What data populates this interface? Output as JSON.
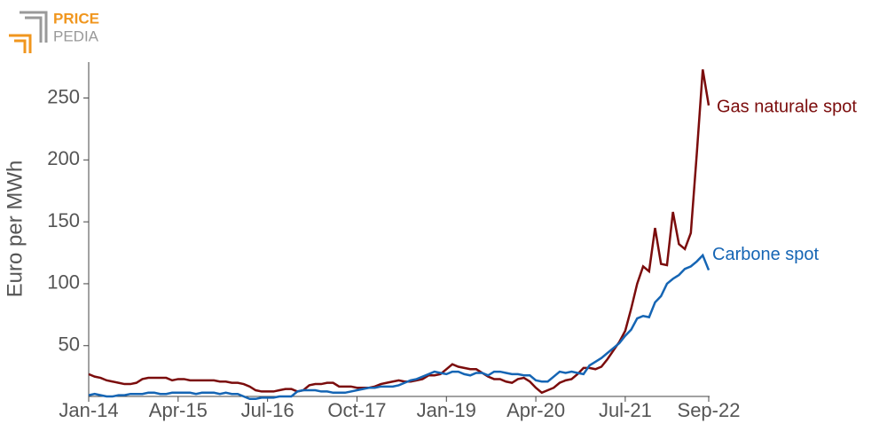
{
  "logo": {
    "top": "PRICE",
    "bottom": "PEDIA"
  },
  "chart_data": {
    "type": "line",
    "y_label": "Euro per MWh",
    "categories": [
      "Jan-14",
      null,
      null,
      null,
      null,
      null,
      null,
      null,
      null,
      null,
      null,
      null,
      null,
      null,
      null,
      "Apr-15",
      null,
      null,
      null,
      null,
      null,
      null,
      null,
      null,
      null,
      null,
      null,
      null,
      null,
      null,
      "Jul-16",
      null,
      null,
      null,
      null,
      null,
      null,
      null,
      null,
      null,
      null,
      null,
      null,
      null,
      null,
      "Oct-17",
      null,
      null,
      null,
      null,
      null,
      null,
      null,
      null,
      null,
      null,
      null,
      null,
      null,
      null,
      "Jan-19",
      null,
      null,
      null,
      null,
      null,
      null,
      null,
      null,
      null,
      null,
      null,
      null,
      null,
      null,
      "Apr-20",
      null,
      null,
      null,
      null,
      null,
      null,
      null,
      null,
      null,
      null,
      null,
      null,
      null,
      null,
      "Jul-21",
      null,
      null,
      null,
      null,
      null,
      null,
      null,
      null,
      null,
      null,
      null,
      null,
      null,
      "Sep-22"
    ],
    "series": [
      {
        "name": "Gas naturale spot",
        "color": "#7b0c0c",
        "values": [
          27,
          25,
          24,
          22,
          21,
          20,
          19,
          19,
          20,
          23,
          24,
          24,
          24,
          24,
          22,
          23,
          23,
          22,
          22,
          22,
          22,
          22,
          21,
          21,
          20,
          20,
          19,
          17,
          14,
          13,
          13,
          13,
          14,
          15,
          15,
          13,
          14,
          18,
          19,
          19,
          20,
          20,
          17,
          17,
          17,
          16,
          16,
          16,
          17,
          19,
          20,
          21,
          22,
          21,
          21,
          22,
          23,
          26,
          26,
          27,
          31,
          35,
          33,
          32,
          31,
          31,
          28,
          25,
          23,
          23,
          21,
          20,
          23,
          24,
          21,
          16,
          12,
          14,
          16,
          20,
          22,
          23,
          27,
          32,
          32,
          31,
          33,
          39,
          46,
          53,
          62,
          80,
          100,
          114,
          110,
          145,
          116,
          115,
          158,
          132,
          128,
          141,
          205,
          273,
          244
        ]
      },
      {
        "name": "Carbone spot",
        "color": "#1565b4",
        "values": [
          10,
          11,
          10,
          9,
          9,
          10,
          10,
          11,
          11,
          11,
          12,
          12,
          11,
          11,
          12,
          12,
          12,
          12,
          11,
          12,
          12,
          12,
          11,
          12,
          11,
          11,
          9,
          7,
          7,
          8,
          8,
          8,
          9,
          9,
          9,
          13,
          14,
          14,
          14,
          13,
          13,
          12,
          12,
          12,
          13,
          14,
          15,
          16,
          16,
          17,
          17,
          17,
          18,
          20,
          22,
          23,
          25,
          27,
          29,
          28,
          27,
          29,
          29,
          27,
          26,
          28,
          28,
          26,
          29,
          29,
          28,
          27,
          27,
          26,
          26,
          22,
          21,
          21,
          25,
          29,
          28,
          29,
          28,
          27,
          34,
          37,
          40,
          44,
          48,
          52,
          58,
          63,
          72,
          74,
          73,
          85,
          90,
          100,
          104,
          107,
          112,
          114,
          118,
          123,
          111
        ]
      }
    ],
    "ylim": [
      9,
      279
    ],
    "yticks": [
      50,
      100,
      150,
      200,
      250
    ]
  }
}
